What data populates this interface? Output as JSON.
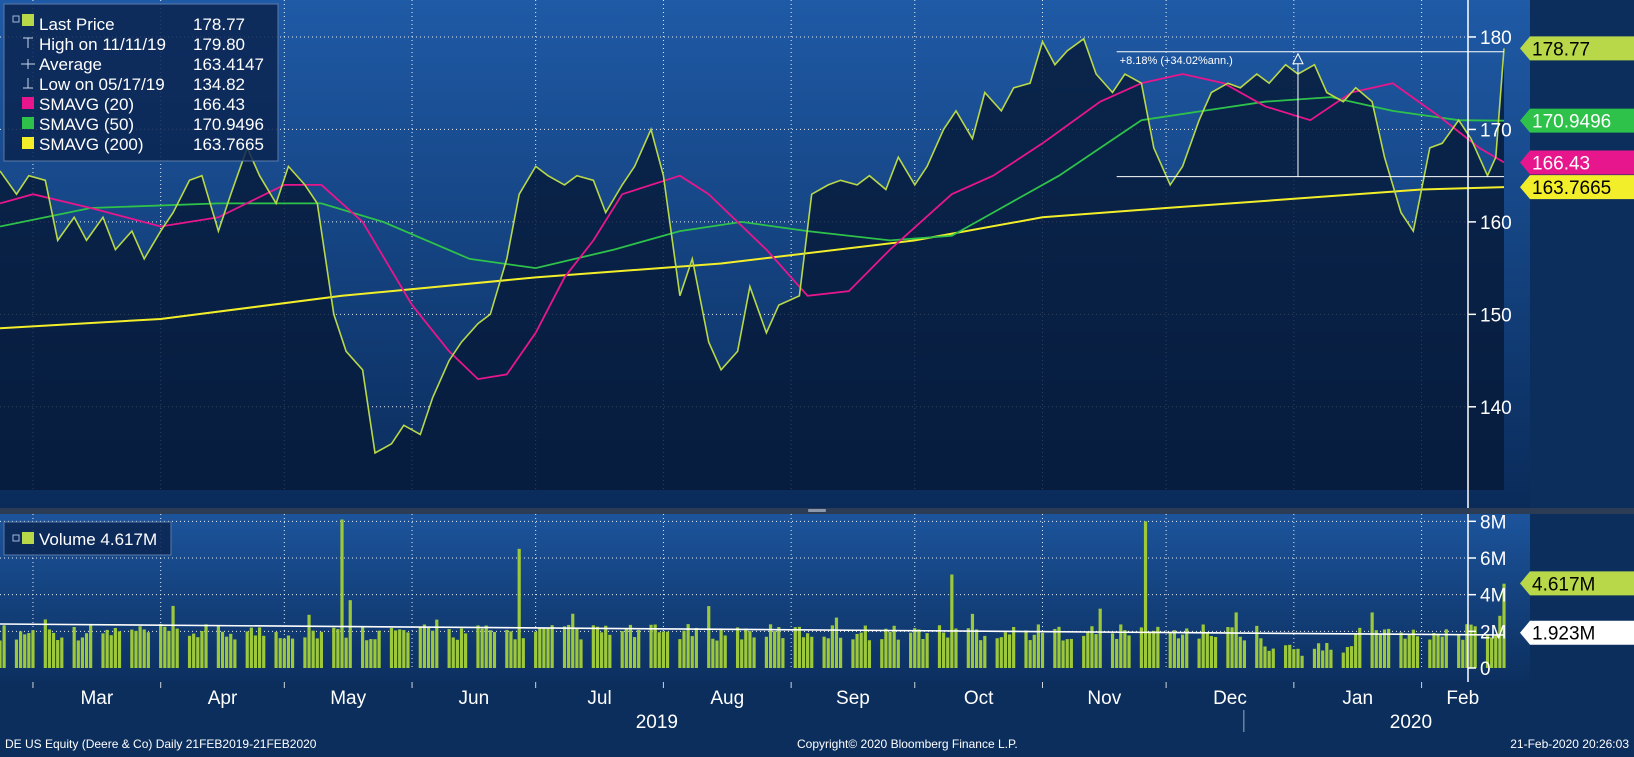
{
  "colors": {
    "background_top": "#1f5aa6",
    "background_bottom": "#0a2b5a",
    "price": "#b8d84a",
    "price_fill": "#061a38",
    "sma20": "#e8168c",
    "sma50": "#2ec24a",
    "sma200": "#f3ee2a",
    "volume_bar": "#9cc83a",
    "volume_avg": "#ffffff",
    "grid": "#ffffff",
    "text": "#ffffff"
  },
  "legend": {
    "last_price_label": "Last Price",
    "last_price_value": "178.77",
    "high_label": "High on 11/11/19",
    "high_value": "179.80",
    "average_label": "Average",
    "average_value": "163.4147",
    "low_label": "Low on 05/17/19",
    "low_value": "134.82",
    "sma20_label": "SMAVG (20)",
    "sma20_value": "166.43",
    "sma50_label": "SMAVG (50)",
    "sma50_value": "170.9496",
    "sma200_label": "SMAVG (200)",
    "sma200_value": "163.7665"
  },
  "volume_legend": {
    "label": "Volume 4.617M"
  },
  "annotation": {
    "text": "+8.18% (+34.02%ann.)"
  },
  "price_tags": {
    "last": "178.77",
    "sma50": "170.9496",
    "sma20": "166.43",
    "sma200": "163.7665"
  },
  "volume_tags": {
    "last": "4.617M",
    "avg": "1.923M"
  },
  "footer": {
    "left": "DE US Equity (Deere & Co)  Daily 21FEB2019-21FEB2020",
    "center": "Copyright© 2020 Bloomberg Finance L.P.",
    "right": "21-Feb-2020 20:26:03"
  },
  "chart_data": [
    {
      "type": "line",
      "title": "DE US Equity (Deere & Co) Daily 21FEB2019-21FEB2020",
      "x_range": [
        "2019-02-21",
        "2020-02-21"
      ],
      "ylim": [
        131,
        184
      ],
      "y_ticks": [
        "140",
        "150",
        "160",
        "170",
        "180"
      ],
      "x_tick_labels": [
        "Mar",
        "Apr",
        "May",
        "Jun",
        "Jul",
        "Aug",
        "Sep",
        "Oct",
        "Nov",
        "Dec",
        "Jan",
        "Feb"
      ],
      "year_labels": [
        "2019",
        "2020"
      ],
      "grid": true,
      "legend_position": "top-left",
      "series": [
        {
          "name": "Last Price",
          "points": [
            [
              "2019-02-21",
              165.5
            ],
            [
              "2019-02-25",
              163
            ],
            [
              "2019-02-28",
              165
            ],
            [
              "2019-03-04",
              164.5
            ],
            [
              "2019-03-07",
              158
            ],
            [
              "2019-03-11",
              160.5
            ],
            [
              "2019-03-14",
              158
            ],
            [
              "2019-03-18",
              160.5
            ],
            [
              "2019-03-21",
              157
            ],
            [
              "2019-03-25",
              159
            ],
            [
              "2019-03-28",
              156
            ],
            [
              "2019-04-01",
              159
            ],
            [
              "2019-04-04",
              161
            ],
            [
              "2019-04-08",
              164.5
            ],
            [
              "2019-04-11",
              165
            ],
            [
              "2019-04-15",
              159
            ],
            [
              "2019-04-18",
              163
            ],
            [
              "2019-04-22",
              168
            ],
            [
              "2019-04-25",
              165
            ],
            [
              "2019-04-29",
              162
            ],
            [
              "2019-05-02",
              166
            ],
            [
              "2019-05-06",
              164
            ],
            [
              "2019-05-09",
              162
            ],
            [
              "2019-05-13",
              150
            ],
            [
              "2019-05-16",
              146
            ],
            [
              "2019-05-20",
              144
            ],
            [
              "2019-05-23",
              135
            ],
            [
              "2019-05-27",
              136
            ],
            [
              "2019-05-30",
              138
            ],
            [
              "2019-06-03",
              137
            ],
            [
              "2019-06-06",
              141
            ],
            [
              "2019-06-10",
              145
            ],
            [
              "2019-06-13",
              147
            ],
            [
              "2019-06-17",
              149
            ],
            [
              "2019-06-20",
              150
            ],
            [
              "2019-06-24",
              156
            ],
            [
              "2019-06-27",
              163
            ],
            [
              "2019-07-01",
              166
            ],
            [
              "2019-07-04",
              165
            ],
            [
              "2019-07-08",
              164
            ],
            [
              "2019-07-11",
              165
            ],
            [
              "2019-07-15",
              164.5
            ],
            [
              "2019-07-18",
              161
            ],
            [
              "2019-07-22",
              164
            ],
            [
              "2019-07-25",
              166
            ],
            [
              "2019-07-29",
              170
            ],
            [
              "2019-08-01",
              165
            ],
            [
              "2019-08-05",
              152
            ],
            [
              "2019-08-08",
              156
            ],
            [
              "2019-08-12",
              147
            ],
            [
              "2019-08-15",
              144
            ],
            [
              "2019-08-19",
              146
            ],
            [
              "2019-08-22",
              153
            ],
            [
              "2019-08-26",
              148
            ],
            [
              "2019-08-29",
              151
            ],
            [
              "2019-09-03",
              152
            ],
            [
              "2019-09-06",
              163
            ],
            [
              "2019-09-10",
              164
            ],
            [
              "2019-09-13",
              164.5
            ],
            [
              "2019-09-17",
              164
            ],
            [
              "2019-09-20",
              165
            ],
            [
              "2019-09-24",
              163.5
            ],
            [
              "2019-09-27",
              167
            ],
            [
              "2019-10-01",
              164
            ],
            [
              "2019-10-04",
              166
            ],
            [
              "2019-10-08",
              170
            ],
            [
              "2019-10-11",
              172
            ],
            [
              "2019-10-15",
              169
            ],
            [
              "2019-10-18",
              174
            ],
            [
              "2019-10-22",
              172
            ],
            [
              "2019-10-25",
              174.5
            ],
            [
              "2019-10-29",
              175
            ],
            [
              "2019-11-01",
              179.5
            ],
            [
              "2019-11-04",
              177
            ],
            [
              "2019-11-07",
              178.5
            ],
            [
              "2019-11-11",
              179.8
            ],
            [
              "2019-11-14",
              176
            ],
            [
              "2019-11-18",
              174
            ],
            [
              "2019-11-21",
              176
            ],
            [
              "2019-11-25",
              175
            ],
            [
              "2019-11-28",
              168
            ],
            [
              "2019-12-02",
              164
            ],
            [
              "2019-12-05",
              166
            ],
            [
              "2019-12-09",
              171
            ],
            [
              "2019-12-12",
              174
            ],
            [
              "2019-12-16",
              175
            ],
            [
              "2019-12-19",
              174.5
            ],
            [
              "2019-12-23",
              176
            ],
            [
              "2019-12-26",
              175
            ],
            [
              "2019-12-30",
              177
            ],
            [
              "2020-01-02",
              176
            ],
            [
              "2020-01-06",
              177
            ],
            [
              "2020-01-09",
              174
            ],
            [
              "2020-01-13",
              173
            ],
            [
              "2020-01-16",
              174.5
            ],
            [
              "2020-01-20",
              173
            ],
            [
              "2020-01-23",
              167
            ],
            [
              "2020-01-27",
              161
            ],
            [
              "2020-01-30",
              159
            ],
            [
              "2020-02-03",
              168
            ],
            [
              "2020-02-06",
              168.5
            ],
            [
              "2020-02-10",
              171
            ],
            [
              "2020-02-13",
              169
            ],
            [
              "2020-02-17",
              165
            ],
            [
              "2020-02-19",
              167
            ],
            [
              "2020-02-21",
              178.77
            ]
          ]
        },
        {
          "name": "SMAVG (20)",
          "points": [
            [
              "2019-02-21",
              162
            ],
            [
              "2019-03-01",
              163
            ],
            [
              "2019-03-15",
              161.5
            ],
            [
              "2019-04-01",
              159.5
            ],
            [
              "2019-04-15",
              160.5
            ],
            [
              "2019-05-01",
              164
            ],
            [
              "2019-05-10",
              164
            ],
            [
              "2019-05-20",
              160
            ],
            [
              "2019-06-01",
              151
            ],
            [
              "2019-06-10",
              146
            ],
            [
              "2019-06-17",
              143
            ],
            [
              "2019-06-24",
              143.5
            ],
            [
              "2019-07-01",
              148
            ],
            [
              "2019-07-08",
              154
            ],
            [
              "2019-07-15",
              158
            ],
            [
              "2019-07-22",
              163
            ],
            [
              "2019-08-05",
              165
            ],
            [
              "2019-08-12",
              163
            ],
            [
              "2019-08-26",
              157
            ],
            [
              "2019-09-05",
              152
            ],
            [
              "2019-09-15",
              152.5
            ],
            [
              "2019-09-25",
              157
            ],
            [
              "2019-10-10",
              163
            ],
            [
              "2019-10-20",
              165
            ],
            [
              "2019-11-01",
              168.5
            ],
            [
              "2019-11-15",
              173
            ],
            [
              "2019-11-25",
              175
            ],
            [
              "2019-12-05",
              176
            ],
            [
              "2019-12-15",
              175
            ],
            [
              "2019-12-25",
              172.5
            ],
            [
              "2020-01-05",
              171
            ],
            [
              "2020-01-15",
              174
            ],
            [
              "2020-01-25",
              175
            ],
            [
              "2020-02-05",
              171.5
            ],
            [
              "2020-02-15",
              168
            ],
            [
              "2020-02-21",
              166.43
            ]
          ]
        },
        {
          "name": "SMAVG (50)",
          "points": [
            [
              "2019-02-21",
              159.5
            ],
            [
              "2019-03-15",
              161.5
            ],
            [
              "2019-04-15",
              162
            ],
            [
              "2019-05-10",
              162
            ],
            [
              "2019-05-25",
              160
            ],
            [
              "2019-06-15",
              156
            ],
            [
              "2019-07-01",
              155
            ],
            [
              "2019-07-20",
              157
            ],
            [
              "2019-08-05",
              159
            ],
            [
              "2019-08-20",
              160
            ],
            [
              "2019-09-05",
              159
            ],
            [
              "2019-09-25",
              158
            ],
            [
              "2019-10-10",
              158.5
            ],
            [
              "2019-10-20",
              161
            ],
            [
              "2019-11-05",
              165
            ],
            [
              "2019-11-25",
              171
            ],
            [
              "2019-12-10",
              172
            ],
            [
              "2019-12-25",
              173
            ],
            [
              "2020-01-10",
              173.5
            ],
            [
              "2020-01-25",
              172
            ],
            [
              "2020-02-10",
              171
            ],
            [
              "2020-02-21",
              170.9496
            ]
          ]
        },
        {
          "name": "SMAVG (200)",
          "points": [
            [
              "2019-02-21",
              148.5
            ],
            [
              "2019-04-01",
              149.5
            ],
            [
              "2019-05-15",
              152
            ],
            [
              "2019-07-01",
              154
            ],
            [
              "2019-08-15",
              155.5
            ],
            [
              "2019-10-01",
              158
            ],
            [
              "2019-11-01",
              160.5
            ],
            [
              "2019-12-01",
              161.5
            ],
            [
              "2020-01-01",
              162.5
            ],
            [
              "2020-02-01",
              163.5
            ],
            [
              "2020-02-21",
              163.7665
            ]
          ]
        }
      ]
    },
    {
      "type": "bar",
      "series_name": "Volume",
      "last_value": "4.617M",
      "average_value": "1.923M",
      "ylim": [
        0,
        8.4
      ],
      "y_ticks": [
        "0",
        "2M",
        "4M",
        "6M",
        "8M"
      ],
      "avg_line": [
        [
          0,
          2.4
        ],
        [
          1,
          1.8
        ]
      ],
      "spikes": [
        {
          "date": "2019-05-15",
          "value": 8.1
        },
        {
          "date": "2019-05-17",
          "value": 3.7
        },
        {
          "date": "2019-06-27",
          "value": 6.5
        },
        {
          "date": "2019-10-10",
          "value": 5.1
        },
        {
          "date": "2019-11-26",
          "value": 8.0
        },
        {
          "date": "2020-02-21",
          "value": 4.6
        }
      ]
    }
  ]
}
